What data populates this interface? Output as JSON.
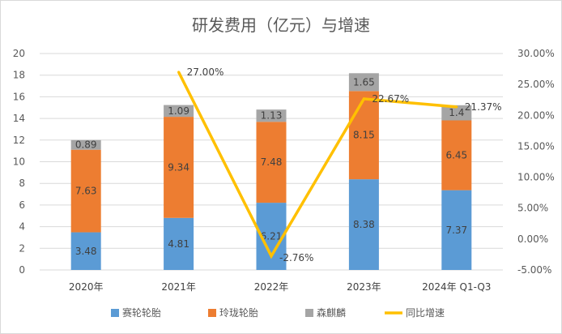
{
  "chart_data": {
    "type": "bar",
    "stacked": true,
    "title": "研发费用（亿元）与增速",
    "categories": [
      "2020年",
      "2021年",
      "2022年",
      "2023年",
      "2024年 Q1-Q3"
    ],
    "series": [
      {
        "name": "赛轮轮胎",
        "type": "bar",
        "axis": "left",
        "color": "#5B9BD5",
        "values": [
          3.48,
          4.81,
          6.21,
          8.38,
          7.37
        ],
        "labels": [
          "3.48",
          "4.81",
          "6.21",
          "8.38",
          "7.37"
        ]
      },
      {
        "name": "玲珑轮胎",
        "type": "bar",
        "axis": "left",
        "color": "#ED7D31",
        "values": [
          7.63,
          9.34,
          7.48,
          8.15,
          6.45
        ],
        "labels": [
          "7.63",
          "9.34",
          "7.48",
          "8.15",
          "6.45"
        ]
      },
      {
        "name": "森麒麟",
        "type": "bar",
        "axis": "left",
        "color": "#A5A5A5",
        "values": [
          0.89,
          1.09,
          1.13,
          1.65,
          1.4
        ],
        "labels": [
          "0.89",
          "1.09",
          "1.13",
          "1.65",
          "1.4"
        ]
      },
      {
        "name": "同比增速",
        "type": "line",
        "axis": "right",
        "color": "#FFC000",
        "values": [
          null,
          27.0,
          -2.76,
          22.67,
          21.37
        ],
        "labels": [
          null,
          "27.00%",
          "-2.76%",
          "22.67%",
          "21.37%"
        ]
      }
    ],
    "y_left": {
      "min": 0,
      "max": 20,
      "step": 2,
      "ticks": [
        "0",
        "2",
        "4",
        "6",
        "8",
        "10",
        "12",
        "14",
        "16",
        "18",
        "20"
      ]
    },
    "y_right": {
      "min": -5,
      "max": 30,
      "step": 5,
      "ticks": [
        "-5.00%",
        "0.00%",
        "5.00%",
        "10.00%",
        "15.00%",
        "20.00%",
        "25.00%",
        "30.00%"
      ]
    },
    "grid": true,
    "legend_position": "bottom"
  }
}
